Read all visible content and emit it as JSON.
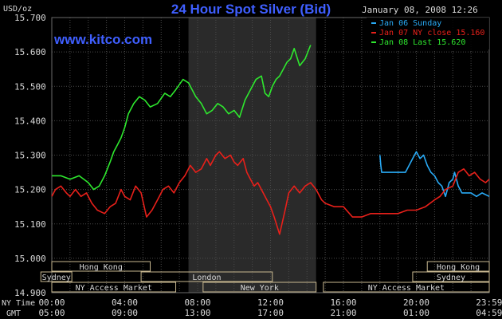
{
  "header": {
    "title": "24 Hour Spot Silver (Bid)",
    "units": "USD/oz",
    "timestamp": "January 08, 2008 12:26",
    "site": "www.kitco.com"
  },
  "colors": {
    "background": "#000000",
    "grid": "#4a4a4a",
    "text": "#d8d8d8",
    "title": "#3f5fff",
    "site": "#3f5fff",
    "ny_session": "#2a2a2a",
    "market_box": "#c8b890",
    "jan06": "#29aaf5",
    "jan07": "#e8201a",
    "jan08": "#2ee82e"
  },
  "chart_data": {
    "type": "line",
    "ylim": [
      14.9,
      15.7
    ],
    "y_ticks": [
      "14.900",
      "15.000",
      "15.100",
      "15.200",
      "15.300",
      "15.400",
      "15.500",
      "15.600",
      "15.700"
    ],
    "xlim": [
      0,
      29
    ],
    "x_tick_hours": [
      0,
      4,
      8,
      12,
      16,
      20,
      23.99
    ],
    "x_labels_ny": [
      "00:00",
      "04:00",
      "08:00",
      "12:00",
      "16:00",
      "20:00",
      "23:59"
    ],
    "x_labels_gmt": [
      "05:00",
      "09:00",
      "13:00",
      "17:00",
      "21:00",
      "01:00",
      "04:59"
    ],
    "x_row_labels": {
      "ny": "NY Time",
      "gmt": "GMT"
    },
    "ny_session_hours": [
      7.5,
      14.5
    ],
    "legend": [
      {
        "label": "Jan 06 Sunday",
        "color": "#29aaf5"
      },
      {
        "label": "Jan 07 NY close 15.160",
        "color": "#e8201a"
      },
      {
        "label": "Jan 08 Last 15.620",
        "color": "#2ee82e"
      }
    ],
    "series": [
      {
        "name": "Jan 06 Sunday",
        "color": "#29aaf5",
        "x": [
          18.0,
          18.05,
          18.1,
          18.2,
          18.6,
          19.0,
          19.4,
          19.6,
          19.8,
          20.0,
          20.2,
          20.4,
          20.6,
          20.8,
          21.0,
          21.2,
          21.4,
          21.6,
          21.8,
          22.0,
          22.1,
          22.3,
          22.5,
          22.8,
          23.0,
          23.3,
          23.6,
          24.0
        ],
        "y": [
          15.3,
          15.27,
          15.25,
          15.25,
          15.25,
          15.25,
          15.25,
          15.27,
          15.29,
          15.31,
          15.29,
          15.3,
          15.27,
          15.25,
          15.24,
          15.22,
          15.21,
          15.18,
          15.22,
          15.23,
          15.25,
          15.21,
          15.19,
          15.19,
          15.19,
          15.18,
          15.19,
          15.18
        ]
      },
      {
        "name": "Jan 07 NY close 15.160",
        "color": "#e8201a",
        "x": [
          0.0,
          0.2,
          0.5,
          0.8,
          1.0,
          1.3,
          1.6,
          1.9,
          2.2,
          2.5,
          2.9,
          3.2,
          3.5,
          3.8,
          4.0,
          4.3,
          4.6,
          4.9,
          5.2,
          5.5,
          5.8,
          6.1,
          6.4,
          6.7,
          7.0,
          7.3,
          7.6,
          7.9,
          8.2,
          8.5,
          8.7,
          9.0,
          9.2,
          9.5,
          9.8,
          10.0,
          10.2,
          10.5,
          10.7,
          10.9,
          11.1,
          11.3,
          11.6,
          11.8,
          12.0,
          12.2,
          12.5,
          12.8,
          13.0,
          13.3,
          13.6,
          13.9,
          14.2,
          14.5,
          14.8,
          15.0,
          15.5,
          16.0,
          16.5,
          17.0,
          17.5,
          18.0,
          18.5,
          19.0,
          19.5,
          20.0,
          20.5,
          21.0,
          21.3,
          21.6,
          22.0,
          22.3,
          22.6,
          22.9,
          23.2,
          23.5,
          23.8,
          24.0
        ],
        "y": [
          15.18,
          15.2,
          15.21,
          15.19,
          15.18,
          15.2,
          15.18,
          15.19,
          15.16,
          15.14,
          15.13,
          15.15,
          15.16,
          15.2,
          15.18,
          15.17,
          15.21,
          15.19,
          15.12,
          15.14,
          15.17,
          15.2,
          15.21,
          15.19,
          15.22,
          15.24,
          15.27,
          15.25,
          15.26,
          15.29,
          15.27,
          15.3,
          15.31,
          15.29,
          15.3,
          15.28,
          15.27,
          15.29,
          15.25,
          15.23,
          15.21,
          15.22,
          15.19,
          15.17,
          15.15,
          15.12,
          15.07,
          15.14,
          15.19,
          15.21,
          15.19,
          15.21,
          15.22,
          15.2,
          15.17,
          15.16,
          15.15,
          15.15,
          15.12,
          15.12,
          15.13,
          15.13,
          15.13,
          15.13,
          15.14,
          15.14,
          15.15,
          15.17,
          15.18,
          15.2,
          15.21,
          15.25,
          15.26,
          15.24,
          15.25,
          15.23,
          15.22,
          15.23
        ]
      },
      {
        "name": "Jan 08 Last 15.620",
        "color": "#2ee82e",
        "x": [
          0.0,
          0.5,
          1.0,
          1.5,
          2.0,
          2.3,
          2.6,
          2.9,
          3.2,
          3.4,
          3.6,
          3.8,
          4.0,
          4.2,
          4.5,
          4.8,
          5.1,
          5.4,
          5.8,
          6.2,
          6.5,
          6.8,
          7.2,
          7.5,
          7.9,
          8.2,
          8.5,
          8.8,
          9.1,
          9.4,
          9.7,
          10.0,
          10.3,
          10.6,
          10.9,
          11.2,
          11.5,
          11.7,
          11.9,
          12.1,
          12.3,
          12.5,
          12.7,
          12.9,
          13.1,
          13.3,
          13.6,
          13.9,
          14.2
        ],
        "y": [
          15.24,
          15.24,
          15.23,
          15.24,
          15.22,
          15.2,
          15.21,
          15.24,
          15.28,
          15.31,
          15.33,
          15.35,
          15.38,
          15.42,
          15.45,
          15.47,
          15.46,
          15.44,
          15.45,
          15.48,
          15.47,
          15.49,
          15.52,
          15.51,
          15.47,
          15.45,
          15.42,
          15.43,
          15.45,
          15.44,
          15.42,
          15.43,
          15.41,
          15.46,
          15.49,
          15.52,
          15.53,
          15.48,
          15.47,
          15.5,
          15.52,
          15.53,
          15.55,
          15.57,
          15.58,
          15.61,
          15.56,
          15.58,
          15.62
        ]
      }
    ],
    "market_rows": [
      {
        "name": "Hong Kong",
        "row": 0,
        "start_hours": [
          0.0,
          20.6
        ],
        "end_hours": [
          5.4,
          24.0
        ]
      },
      {
        "name": "Sydney",
        "row": 1,
        "start_hours": [
          -0.6,
          19.8
        ],
        "end_hours": [
          1.1,
          24.0
        ]
      },
      {
        "name": "London",
        "row": 1,
        "start_hours": [
          4.9
        ],
        "end_hours": [
          12.1
        ]
      },
      {
        "name": "NY Access Market",
        "row": 2,
        "start_hours": [
          0.0,
          14.9
        ],
        "end_hours": [
          6.8,
          24.0
        ]
      },
      {
        "name": "New York",
        "row": 2,
        "start_hours": [
          8.3
        ],
        "end_hours": [
          14.5
        ]
      }
    ]
  }
}
